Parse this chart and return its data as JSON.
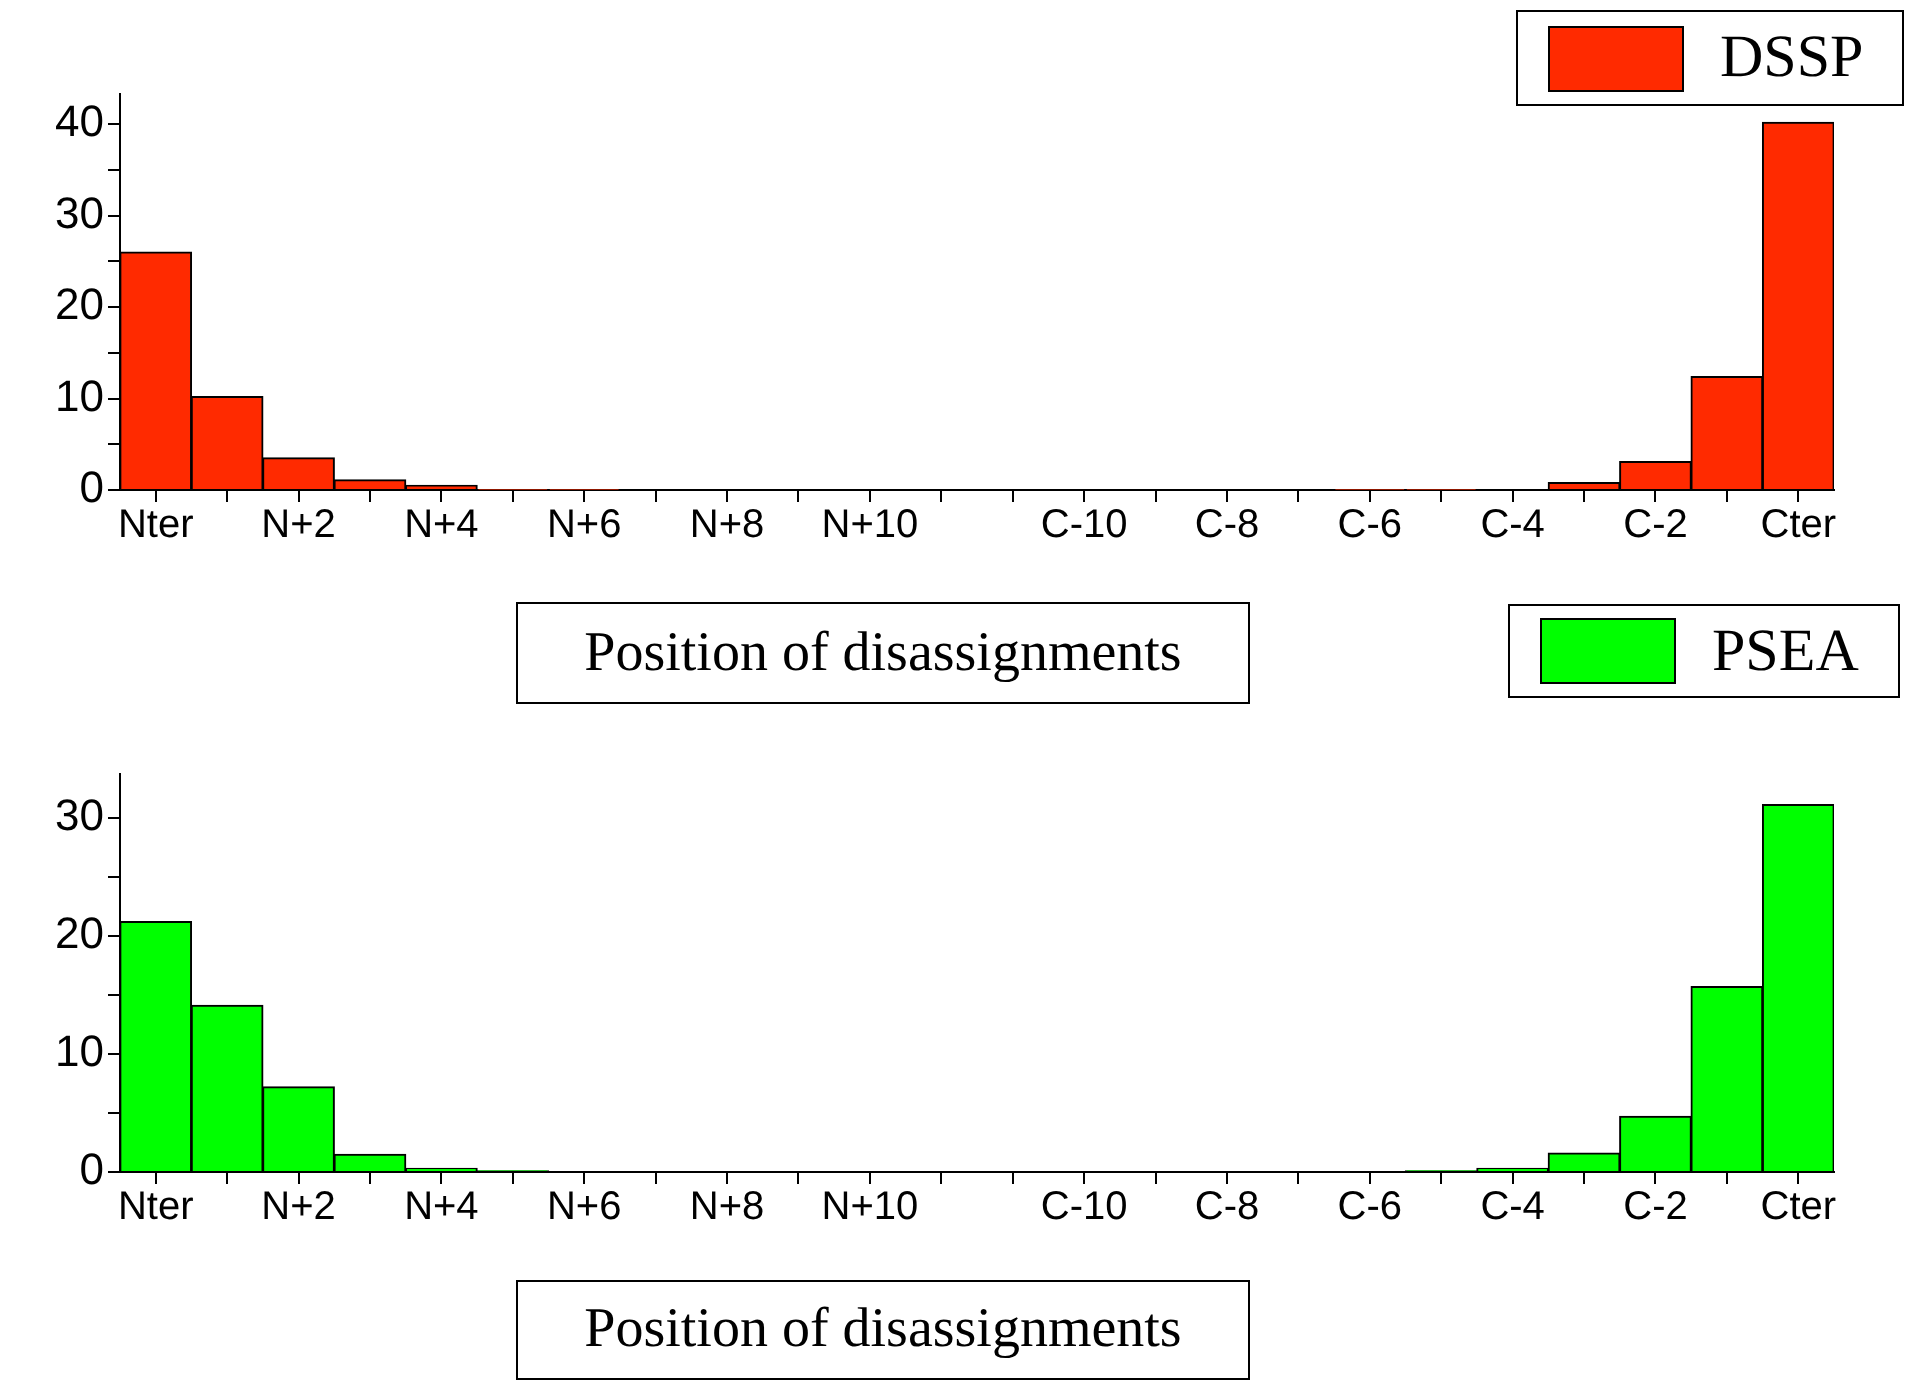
{
  "chart_data": [
    {
      "type": "bar",
      "xlabel": "Position of disassignments",
      "legend": "top right",
      "grid": false,
      "categories": [
        "Nter",
        null,
        "N+2",
        null,
        "N+4",
        null,
        "N+6",
        null,
        "N+8",
        null,
        "N+10",
        null,
        null,
        "C-10",
        null,
        "C-8",
        null,
        "C-6",
        null,
        "C-4",
        null,
        "C-2",
        null,
        "Cter"
      ],
      "series": [
        {
          "name": "DSSP",
          "color": "#ff2a00",
          "values": [
            26,
            10.2,
            3.5,
            1.1,
            0.5,
            0.1,
            0.1,
            0,
            0,
            0,
            0,
            0,
            0,
            0,
            0,
            0,
            0,
            0.1,
            0.1,
            0,
            0.8,
            3.1,
            12.4,
            40.2
          ]
        }
      ],
      "ylim": [
        0,
        43.3
      ],
      "yticks": [
        0,
        {
          "value": 5,
          "label": null
        },
        10,
        {
          "value": 15,
          "label": null
        },
        20,
        {
          "value": 25,
          "label": null
        },
        30,
        {
          "value": 35,
          "label": null
        },
        40
      ]
    },
    {
      "type": "bar",
      "xlabel": "Position of disassignments",
      "legend": "top right",
      "grid": false,
      "categories": [
        "Nter",
        null,
        "N+2",
        null,
        "N+4",
        null,
        "N+6",
        null,
        "N+8",
        null,
        "N+10",
        null,
        null,
        "C-10",
        null,
        "C-8",
        null,
        "C-6",
        null,
        "C-4",
        null,
        "C-2",
        null,
        "Cter"
      ],
      "series": [
        {
          "name": "PSEA",
          "color": "#00ff00",
          "values": [
            21.2,
            14.1,
            7.2,
            1.5,
            0.3,
            0.1,
            0,
            0,
            0,
            0,
            0,
            0,
            0,
            0,
            0,
            0,
            0,
            0,
            0.1,
            0.3,
            1.6,
            4.7,
            15.7,
            31.1
          ]
        }
      ],
      "ylim": [
        0,
        33.7
      ],
      "yticks": [
        0,
        {
          "value": 5,
          "label": null
        },
        10,
        {
          "value": 15,
          "label": null
        },
        20,
        {
          "value": 25,
          "label": null
        },
        30
      ]
    }
  ]
}
